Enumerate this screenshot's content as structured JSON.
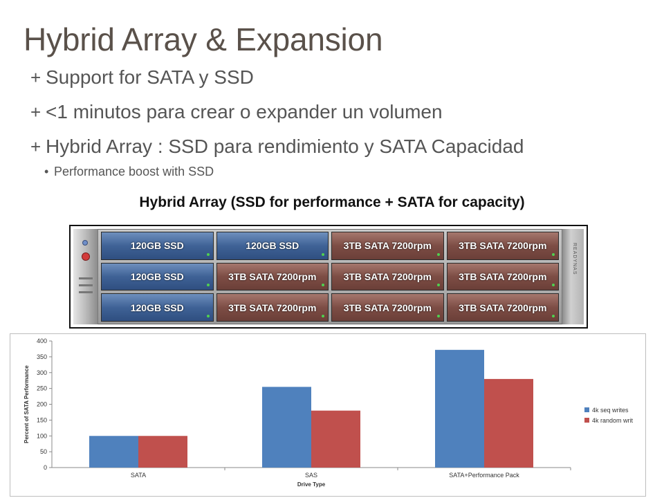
{
  "slide": {
    "title": "Hybrid Array & Expansion",
    "bullets": [
      "Support for SATA y SSD",
      "<1 minutos para crear o expander un volumen",
      "Hybrid Array : SSD para rendimiento y SATA Capacidad"
    ],
    "bullet_mark": "+",
    "sub_bullet": "Performance boost with SSD",
    "sub_bullet_mark": "•"
  },
  "figure": {
    "caption": "Hybrid Array (SSD for performance + SATA for capacity)",
    "rack_side_text": "READYNAS",
    "bays": [
      {
        "label": "120GB SSD",
        "kind": "ssd"
      },
      {
        "label": "120GB SSD",
        "kind": "ssd"
      },
      {
        "label": "3TB SATA 7200rpm",
        "kind": "sata"
      },
      {
        "label": "3TB SATA 7200rpm",
        "kind": "sata"
      },
      {
        "label": "120GB SSD",
        "kind": "ssd"
      },
      {
        "label": "3TB SATA 7200rpm",
        "kind": "sata"
      },
      {
        "label": "3TB SATA 7200rpm",
        "kind": "sata"
      },
      {
        "label": "3TB SATA 7200rpm",
        "kind": "sata"
      },
      {
        "label": "120GB SSD",
        "kind": "ssd"
      },
      {
        "label": "3TB SATA 7200rpm",
        "kind": "sata"
      },
      {
        "label": "3TB SATA 7200rpm",
        "kind": "sata"
      },
      {
        "label": "3TB SATA 7200rpm",
        "kind": "sata"
      }
    ]
  },
  "chart_data": {
    "type": "bar",
    "title": "",
    "xlabel": "Drive Type",
    "ylabel": "Percent of SATA Performance",
    "categories": [
      "SATA",
      "SAS",
      "SATA+Performance Pack"
    ],
    "series": [
      {
        "name": "4k seq writes",
        "values": [
          100,
          255,
          372
        ],
        "color": "#4f81bd"
      },
      {
        "name": "4k random writ",
        "values": [
          100,
          180,
          280
        ],
        "color": "#c0504d"
      }
    ],
    "ylim": [
      0,
      400
    ],
    "yticks": [
      0,
      50,
      100,
      150,
      200,
      250,
      300,
      350,
      400
    ],
    "grid": false,
    "legend": "right"
  }
}
